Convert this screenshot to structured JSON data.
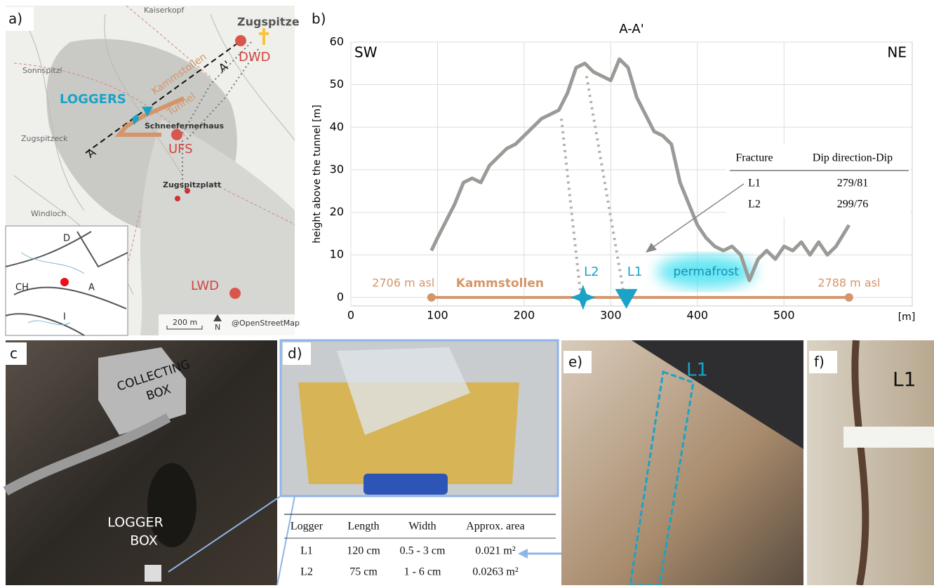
{
  "panel_labels": [
    "a)",
    "b)",
    "c",
    "d)",
    "e)",
    "f)"
  ],
  "map": {
    "places": [
      "Kaiserkopf",
      "Zugspitze",
      "DWD",
      "A'",
      "Sonnspitzl",
      "LOGGERS",
      "Kammstollen",
      "Tunnel",
      "Schneefernerhaus",
      "UFS",
      "Zugspitzeck",
      "A",
      "Windloch",
      "Zugspitzplatt",
      "LWD"
    ],
    "scale": "200 m",
    "north": "N",
    "credit": "@OpenStreetMap",
    "inset": [
      "D",
      "CH",
      "A",
      "I"
    ]
  },
  "chart_data": {
    "type": "line",
    "title": "A-A'",
    "y_label": "height above the tunnel [m]",
    "x_label": "[m]",
    "corner_labels": [
      "SW",
      "NE"
    ],
    "x": [
      93,
      100,
      110,
      120,
      130,
      140,
      150,
      160,
      170,
      180,
      190,
      200,
      210,
      220,
      230,
      240,
      250,
      260,
      270,
      280,
      290,
      300,
      310,
      320,
      330,
      340,
      350,
      360,
      370,
      380,
      390,
      400,
      410,
      420,
      430,
      440,
      450,
      460,
      470,
      480,
      490,
      500,
      510,
      520,
      530,
      540,
      550,
      560,
      575
    ],
    "series": [
      {
        "color": "#9a9a96",
        "values": [
          11,
          14,
          18,
          22,
          27,
          28,
          27,
          31,
          33,
          35,
          36,
          38,
          40,
          42,
          43,
          44,
          48,
          54,
          55,
          53,
          52,
          51,
          56,
          54,
          47,
          43,
          39,
          38,
          36,
          27,
          22,
          17,
          14,
          12,
          11,
          12,
          10,
          4,
          9,
          11,
          9,
          12,
          11,
          13,
          10,
          13,
          10,
          12,
          17
        ]
      }
    ],
    "fractures": [
      {
        "x": [
          243,
          265
        ],
        "y": [
          42,
          1
        ],
        "color": "#b0b0ac"
      },
      {
        "x": [
          272,
          315
        ],
        "y": [
          52,
          1
        ],
        "color": "#b0b0ac"
      }
    ],
    "tunnel": {
      "label": "Kammstollen",
      "x": [
        93,
        575
      ],
      "start_label": "2706 m asl",
      "end_label": "2788 m asl",
      "color": "#d4956a"
    },
    "loggers": [
      {
        "label": "L2",
        "x": 268
      },
      {
        "label": "L1",
        "x": 318
      }
    ],
    "permafrost": {
      "label": "permafrost",
      "x": 410,
      "y": 6
    },
    "xlim": [
      0,
      648
    ],
    "ylim": [
      -2,
      60
    ],
    "xticks": [
      0,
      100,
      200,
      300,
      400,
      500
    ],
    "yticks": [
      0,
      10,
      20,
      30,
      40,
      50,
      60
    ],
    "grid": true,
    "fracture_table": {
      "header": [
        "Fracture",
        "Dip direction-Dip"
      ],
      "rows": [
        [
          "L1",
          "279/81"
        ],
        [
          "L2",
          "299/76"
        ]
      ]
    }
  },
  "photo_c": {
    "labels": [
      "COLLECTING",
      "BOX",
      "LOGGER",
      "BOX"
    ]
  },
  "table": {
    "header": [
      "Logger",
      "Length",
      "Width",
      "Approx. area"
    ],
    "rows": [
      [
        "L1",
        "120 cm",
        "0.5 - 3 cm",
        "0.021 m²"
      ],
      [
        "L2",
        "75 cm",
        "1 - 6 cm",
        "0.0263 m²"
      ]
    ]
  },
  "photo_e": {
    "label": "L1"
  },
  "photo_f": {
    "label": "L1"
  }
}
